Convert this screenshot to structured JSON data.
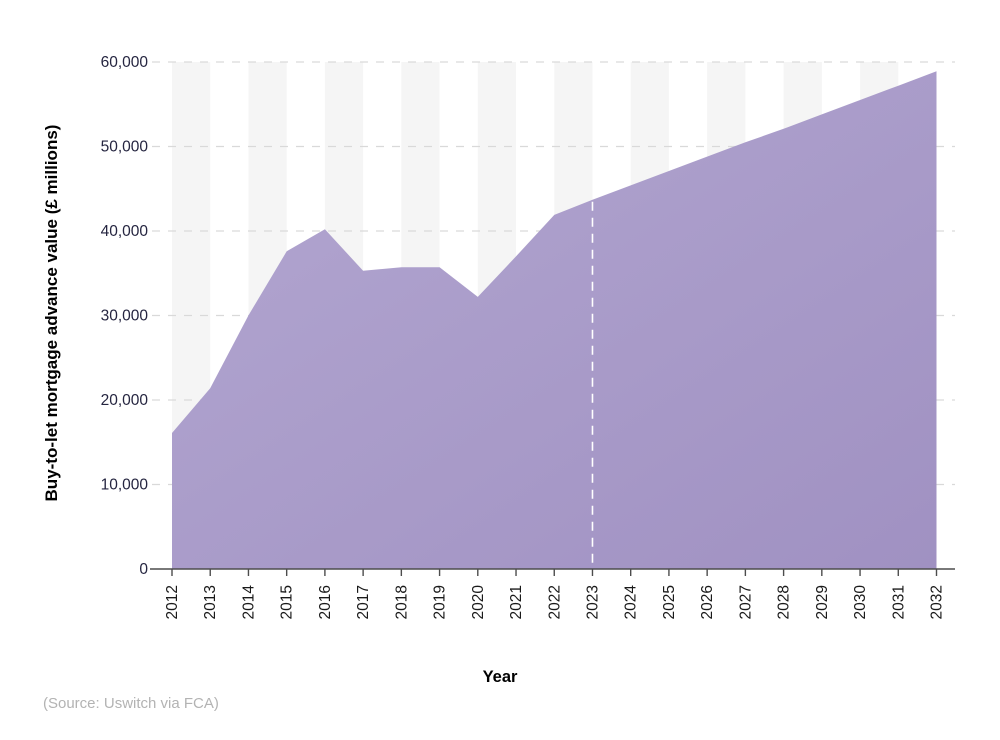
{
  "chart_data": {
    "type": "area",
    "x": [
      2012,
      2013,
      2014,
      2015,
      2016,
      2017,
      2018,
      2019,
      2020,
      2021,
      2022,
      2023,
      2024,
      2025,
      2026,
      2027,
      2028,
      2029,
      2030,
      2031,
      2032
    ],
    "values": [
      16100,
      21400,
      30000,
      37600,
      40200,
      35300,
      35700,
      35700,
      32200,
      37000,
      41900,
      43700,
      45400,
      47100,
      48800,
      50500,
      52100,
      53800,
      55500,
      57200,
      58900
    ],
    "title": "",
    "xlabel": "Year",
    "ylabel": "Buy-to-let mortgage advance value (£ millions)",
    "ylim": [
      0,
      60000
    ],
    "ytick_step": 10000,
    "ytick_labels": [
      "0",
      "10,000",
      "20,000",
      "30,000",
      "40,000",
      "50,000",
      "60,000"
    ],
    "grid": "horizontal-dashed",
    "legend": "none",
    "forecast_divider_year": 2023,
    "source": "(Source: Uswitch via FCA)",
    "colors": {
      "area_fill_light": "#b3a7d1",
      "area_fill_dark": "#a091c2",
      "stripe": "#f5f5f5",
      "gridline": "#d9d9d9",
      "axis": "#4d4d4d",
      "y_tick_label": "#252540",
      "x_tick_label": "#1a1a1a",
      "forecast_divider": "#ffffff",
      "source_text": "#b3b3b3"
    }
  }
}
